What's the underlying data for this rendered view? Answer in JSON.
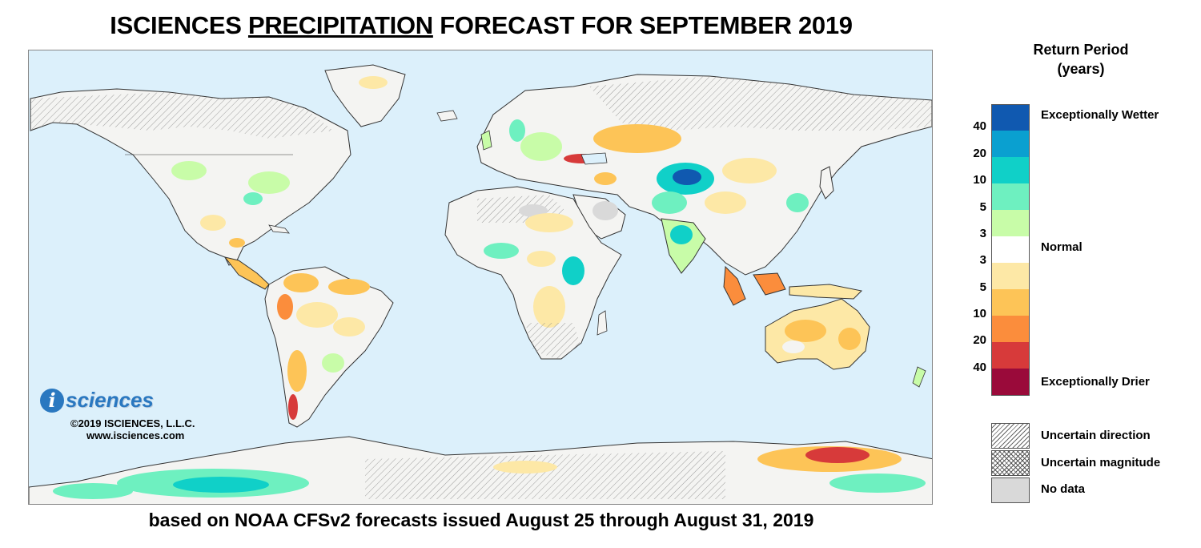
{
  "header": {
    "title_pre": "ISCIENCES ",
    "title_underlined": "PRECIPITATION",
    "title_post": " FORECAST FOR SEPTEMBER 2019"
  },
  "footer": {
    "subtitle": "based on NOAA CFSv2 forecasts issued August 25 through August 31, 2019"
  },
  "branding": {
    "logo_letter": "i",
    "logo_text": "sciences",
    "copyright": "©2019 ISCIENCES, L.L.C.",
    "website": "www.isciences.com"
  },
  "legend": {
    "title_line1": "Return Period",
    "title_line2": "(years)",
    "colors": [
      "#1059b0",
      "#0aa0d0",
      "#10d0c8",
      "#6ef0c0",
      "#c8fca8",
      "#ffffff",
      "#fde8a6",
      "#fdc457",
      "#fb8d3c",
      "#d73a3a",
      "#9a0a3a"
    ],
    "ticks": [
      "40",
      "20",
      "10",
      "5",
      "3",
      "3",
      "5",
      "10",
      "20",
      "40"
    ],
    "wet_label": "Exceptionally Wetter",
    "normal_label": "Normal",
    "dry_label": "Exceptionally Drier",
    "uncertain_direction": "Uncertain direction",
    "uncertain_magnitude": "Uncertain magnitude",
    "no_data": "No data"
  },
  "map": {
    "ocean_color": "#dcf0fb",
    "land_color": "#f4f4f2"
  }
}
